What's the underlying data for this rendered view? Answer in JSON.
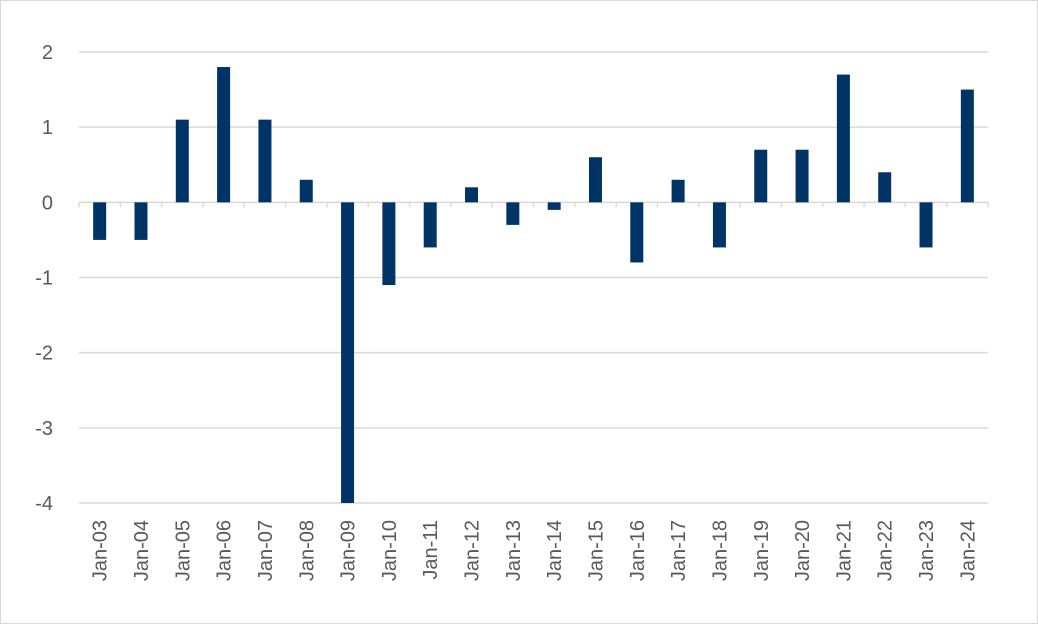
{
  "chart_data": {
    "type": "bar",
    "title": "",
    "xlabel": "",
    "ylabel": "",
    "ylim": [
      -4,
      2
    ],
    "yticks": [
      2,
      1,
      0,
      -1,
      -2,
      -3,
      -4
    ],
    "ytick_labels": [
      "2",
      "1",
      "0",
      "-1",
      "-2",
      "-3",
      "-4"
    ],
    "grid": true,
    "bar_color": "#003366",
    "categories": [
      "Jan-03",
      "Jan-04",
      "Jan-05",
      "Jan-06",
      "Jan-07",
      "Jan-08",
      "Jan-09",
      "Jan-10",
      "Jan-11",
      "Jan-12",
      "Jan-13",
      "Jan-14",
      "Jan-15",
      "Jan-16",
      "Jan-17",
      "Jan-18",
      "Jan-19",
      "Jan-20",
      "Jan-21",
      "Jan-22",
      "Jan-23",
      "Jan-24"
    ],
    "values": [
      -0.5,
      -0.5,
      1.1,
      1.8,
      1.1,
      0.3,
      -4.0,
      -1.1,
      -0.6,
      0.2,
      -0.3,
      -0.1,
      0.6,
      -0.8,
      0.3,
      -0.6,
      0.7,
      0.7,
      1.7,
      0.4,
      -0.6,
      1.5
    ]
  }
}
